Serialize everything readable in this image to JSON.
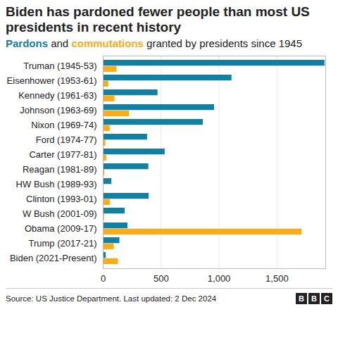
{
  "chart_data": {
    "type": "bar",
    "orientation": "horizontal",
    "title": "Biden has pardoned fewer people than most US presidents in recent history",
    "subtitle": "Pardons and commutations granted by presidents since 1945",
    "source": "Source: US Justice Department. Last updated: 2 Dec 2024",
    "logo": "BBC",
    "categories": [
      "Truman (1945-53)",
      "Eisenhower (1953-61)",
      "Kennedy (1961-63)",
      "Johnson (1963-69)",
      "Nixon (1969-74)",
      "Ford (1974-77)",
      "Carter (1977-81)",
      "Reagan (1981-89)",
      "HW Bush (1989-93)",
      "Clinton (1993-01)",
      "W Bush (2001-09)",
      "Obama (2009-17)",
      "Trump (2017-21)",
      "Biden (2021-Present)"
    ],
    "series": [
      {
        "name": "Pardons",
        "color": "#1380a1",
        "values": [
          1913,
          1110,
          472,
          960,
          863,
          382,
          534,
          393,
          74,
          396,
          189,
          212,
          143,
          25
        ]
      },
      {
        "name": "commutations",
        "color": "#fbad19",
        "values": [
          118,
          47,
          100,
          226,
          60,
          22,
          29,
          13,
          3,
          61,
          11,
          1715,
          94,
          131
        ]
      }
    ],
    "xlim": [
      0,
      1920
    ],
    "xticks": [
      0,
      500,
      {
        "value": 1000,
        "label": "1,000"
      },
      {
        "value": 1500,
        "label": "1,500"
      }
    ],
    "grid": true
  }
}
